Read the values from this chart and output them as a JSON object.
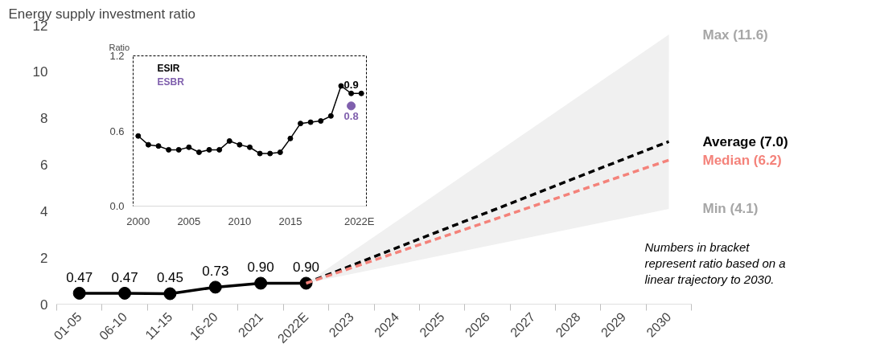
{
  "chart_data": [
    {
      "type": "line",
      "title": "Energy supply investment ratio",
      "categories": [
        "01-05",
        "06-10",
        "11-15",
        "16-20",
        "2021",
        "2022E",
        "2023",
        "2024",
        "2025",
        "2026",
        "2027",
        "2028",
        "2029",
        "2030"
      ],
      "ylim": [
        0,
        12
      ],
      "yticks": [
        0,
        2,
        4,
        6,
        8,
        10,
        12
      ],
      "grid": false,
      "marker": "circle",
      "series": [
        {
          "color": "#000000",
          "values": [
            0.47,
            0.47,
            0.45,
            0.73,
            0.9,
            0.9,
            null,
            null,
            null,
            null,
            null,
            null,
            null,
            null
          ],
          "value_labels": [
            "0.47",
            "0.47",
            "0.45",
            "0.73",
            "0.90",
            "0.90",
            null,
            null,
            null,
            null,
            null,
            null,
            null,
            null
          ]
        },
        {
          "name": "Average (7.0)",
          "color": "#000000",
          "line_style": "dashed",
          "marker": "none",
          "values": [
            null,
            null,
            null,
            null,
            null,
            0.9,
            null,
            null,
            null,
            null,
            null,
            null,
            null,
            7.0
          ],
          "lower": [
            null,
            null,
            null,
            null,
            null,
            0.9,
            null,
            null,
            null,
            null,
            null,
            null,
            null,
            4.1
          ],
          "upper": [
            null,
            null,
            null,
            null,
            null,
            0.9,
            null,
            null,
            null,
            null,
            null,
            null,
            null,
            11.6
          ]
        },
        {
          "name": "Median (6.2)",
          "color": "#f4827a",
          "line_style": "dashed",
          "marker": "none",
          "values": [
            null,
            null,
            null,
            null,
            null,
            0.9,
            null,
            null,
            null,
            null,
            null,
            null,
            null,
            6.2
          ]
        }
      ],
      "annotations": [
        {
          "text": "Max (11.6)",
          "x": "2030",
          "y": 11.6
        },
        {
          "text": "Min (4.1)",
          "x": "2030",
          "y": 4.1
        },
        "Numbers in bracket represent ratio based on a linear trajectory to 2030."
      ]
    },
    {
      "type": "line",
      "ylabel": "Ratio",
      "x": [
        2000,
        2001,
        2002,
        2003,
        2004,
        2005,
        2006,
        2007,
        2008,
        2009,
        2010,
        2011,
        2012,
        2013,
        2014,
        2015,
        2016,
        2017,
        2018,
        2019,
        2020,
        2021,
        2022
      ],
      "xlim": [
        1999.5,
        2022.5
      ],
      "xticks": [
        2000,
        2005,
        2010,
        2015,
        {
          "value": 2022,
          "label": "2022E"
        }
      ],
      "ylim": [
        0,
        1.2
      ],
      "yticks": [
        {
          "value": 0,
          "label": "0.0"
        },
        0.6,
        1.2
      ],
      "grid": false,
      "legend": "top left",
      "marker": "circle",
      "series": [
        {
          "name": "ESIR",
          "color": "#000000",
          "values": [
            0.56,
            0.49,
            0.48,
            0.45,
            0.45,
            0.47,
            0.43,
            0.45,
            0.45,
            0.52,
            0.49,
            0.47,
            0.42,
            0.42,
            0.43,
            0.54,
            0.66,
            0.67,
            0.68,
            0.72,
            0.96,
            0.9,
            0.9
          ],
          "value_labels": [
            null,
            null,
            null,
            null,
            null,
            null,
            null,
            null,
            null,
            null,
            null,
            null,
            null,
            null,
            null,
            null,
            null,
            null,
            null,
            null,
            null,
            "0.9",
            null
          ]
        },
        {
          "name": "ESBR",
          "color": "#7f5fad",
          "x": [
            2021
          ],
          "values": [
            0.8
          ],
          "value_labels": [
            "0.8"
          ]
        }
      ]
    }
  ]
}
